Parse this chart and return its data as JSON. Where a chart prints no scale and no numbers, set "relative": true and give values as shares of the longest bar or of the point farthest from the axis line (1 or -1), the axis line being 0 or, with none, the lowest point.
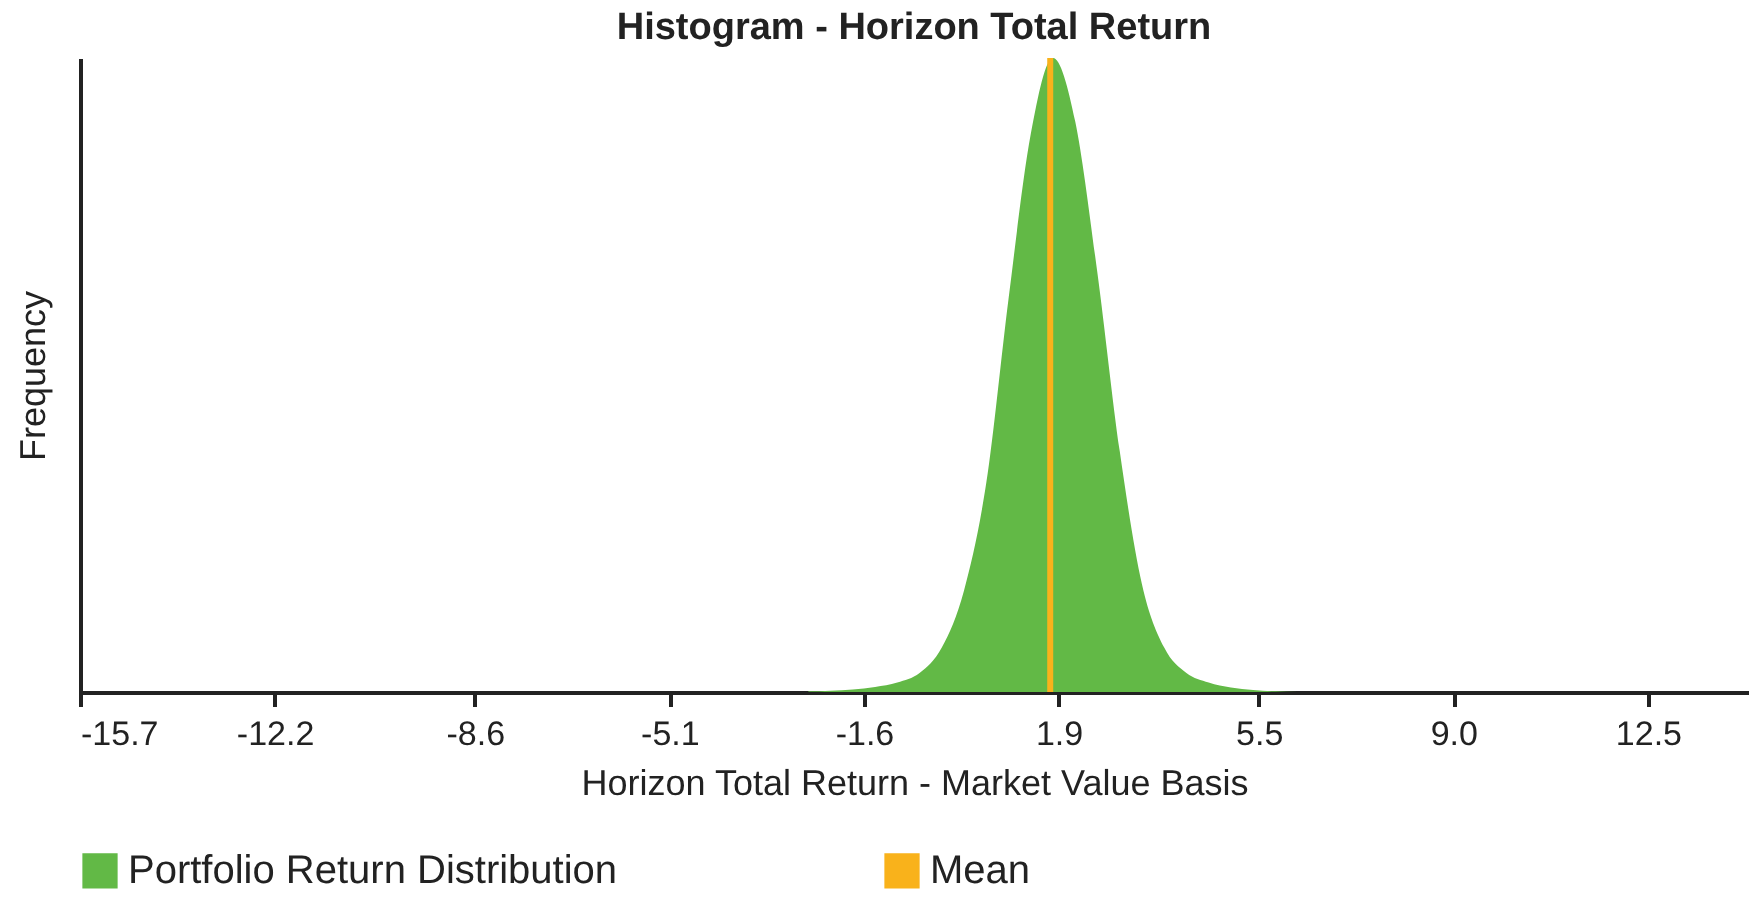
{
  "chart_data": {
    "type": "area",
    "title": "Histogram - Horizon Total Return",
    "xlabel": "Horizon Total Return - Market Value Basis",
    "ylabel": "Frequency",
    "relative": true,
    "x": [
      -2.6,
      -2.2,
      -1.8,
      -1.4,
      -1.0,
      -0.6,
      -0.2,
      0.2,
      0.6,
      1.0,
      1.4,
      1.8,
      2.2,
      2.6,
      3.0,
      3.4,
      3.8,
      4.2,
      4.6,
      5.0,
      5.4,
      5.8,
      6.2
    ],
    "series": [
      {
        "name": "Portfolio Return Distribution",
        "color": "#62b946",
        "values": [
          0.001,
          0.002,
          0.004,
          0.008,
          0.015,
          0.03,
          0.07,
          0.16,
          0.33,
          0.62,
          0.88,
          1,
          0.9,
          0.66,
          0.38,
          0.17,
          0.07,
          0.03,
          0.015,
          0.007,
          0.003,
          0.001,
          0
        ]
      }
    ],
    "ref_lines": [
      {
        "axis": "x",
        "value": 1.75,
        "label": "Mean",
        "color": "#f9b21b"
      }
    ],
    "xlim": [
      -15.7,
      14.3
    ],
    "xticks": [
      -15.7,
      -12.2,
      -8.6,
      -5.1,
      -1.6,
      1.9,
      5.5,
      {
        "value": 9,
        "label": "9.0"
      },
      12.5
    ],
    "legend": "bottom"
  }
}
